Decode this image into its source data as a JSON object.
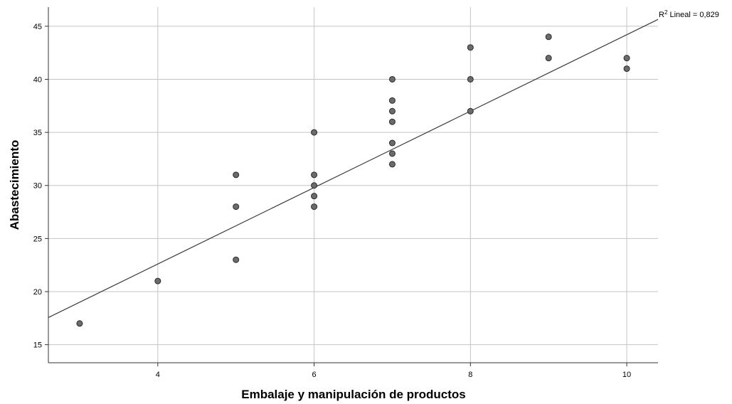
{
  "chart_data": {
    "type": "scatter",
    "xlabel": "Embalaje y manipulación de productos",
    "ylabel": "Abastecimiento",
    "xlim": [
      2.6,
      10.4
    ],
    "ylim": [
      13.3,
      46.8
    ],
    "x_ticks": [
      4,
      6,
      8,
      10
    ],
    "y_ticks": [
      15,
      20,
      25,
      30,
      35,
      40,
      45
    ],
    "x_tick_labels": [
      "4",
      "6",
      "8",
      "10"
    ],
    "y_tick_labels": [
      "15",
      "20",
      "25",
      "30",
      "35",
      "40",
      "45"
    ],
    "grid": true,
    "series": [
      {
        "points": [
          [
            3,
            17
          ],
          [
            4,
            21
          ],
          [
            5,
            23
          ],
          [
            5,
            28
          ],
          [
            5,
            31
          ],
          [
            6,
            28
          ],
          [
            6,
            29
          ],
          [
            6,
            30
          ],
          [
            6,
            31
          ],
          [
            6,
            35
          ],
          [
            7,
            32
          ],
          [
            7,
            33
          ],
          [
            7,
            34
          ],
          [
            7,
            36
          ],
          [
            7,
            37
          ],
          [
            7,
            38
          ],
          [
            7,
            40
          ],
          [
            8,
            37
          ],
          [
            8,
            40
          ],
          [
            8,
            43
          ],
          [
            9,
            42
          ],
          [
            9,
            44
          ],
          [
            10,
            41
          ],
          [
            10,
            42
          ]
        ],
        "color": "#6b6b6b"
      }
    ],
    "fit_line": {
      "type": "linear",
      "intercept": 8.2,
      "slope": 3.6,
      "color": "#3c3c3c"
    },
    "r2_label": {
      "prefix": "R",
      "superscript": "2",
      "text": " Lineal = 0,829"
    }
  }
}
